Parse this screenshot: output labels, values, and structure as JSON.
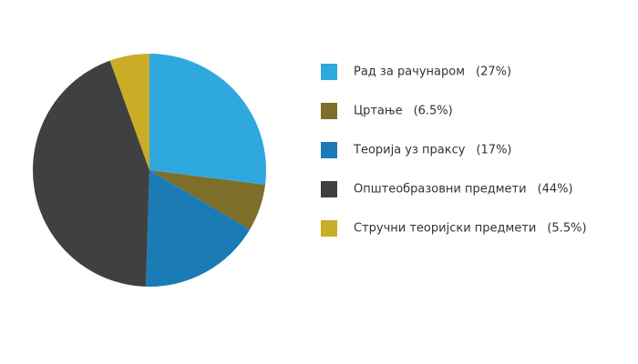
{
  "chart_data": {
    "type": "pie",
    "categories": [
      "Рад за рачунаром",
      "Цртање",
      "Теорија уз праксу",
      "Општеобразовни предмети",
      "Стручни теоријски предмети"
    ],
    "values": [
      27,
      6.5,
      17,
      44,
      5.5
    ],
    "value_labels": [
      "(27%)",
      "(6.5%)",
      "(17%)",
      "(44%)",
      "(5.5%)"
    ],
    "colors": [
      "#2fa8df",
      "#7d6e2a",
      "#1a7bb5",
      "#404040",
      "#c9ad27"
    ],
    "legend": "right"
  }
}
